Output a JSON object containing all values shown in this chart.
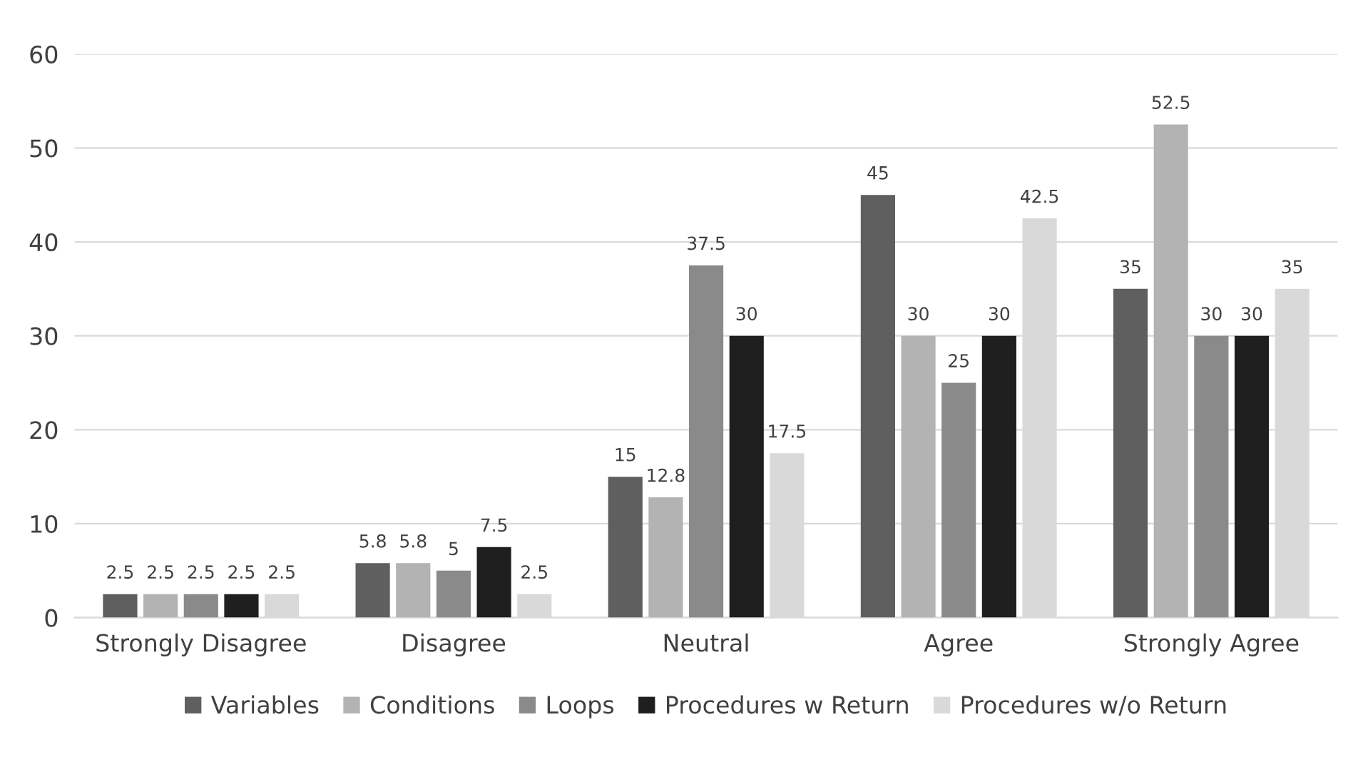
{
  "chart_data": {
    "type": "bar",
    "categories": [
      "Strongly Disagree",
      "Disagree",
      "Neutral",
      "Agree",
      "Strongly Agree"
    ],
    "series": [
      {
        "name": "Variables",
        "color": "#5f5f5f",
        "values": [
          2.5,
          5.8,
          15,
          45,
          35
        ]
      },
      {
        "name": "Conditions",
        "color": "#b3b3b3",
        "values": [
          2.5,
          5.8,
          12.8,
          30,
          52.5
        ]
      },
      {
        "name": "Loops",
        "color": "#8a8a8a",
        "values": [
          2.5,
          5,
          37.5,
          25,
          30
        ]
      },
      {
        "name": "Procedures w Return",
        "color": "#1f1f1f",
        "values": [
          2.5,
          7.5,
          30,
          30,
          30
        ]
      },
      {
        "name": "Procedures w/o Return",
        "color": "#d9d9d9",
        "values": [
          2.5,
          2.5,
          17.5,
          42.5,
          35
        ]
      }
    ],
    "ylim": [
      0,
      60
    ],
    "yticks": [
      0,
      10,
      20,
      30,
      40,
      50,
      60
    ],
    "grid": "y",
    "legend": "bottom",
    "data_labels": true
  }
}
